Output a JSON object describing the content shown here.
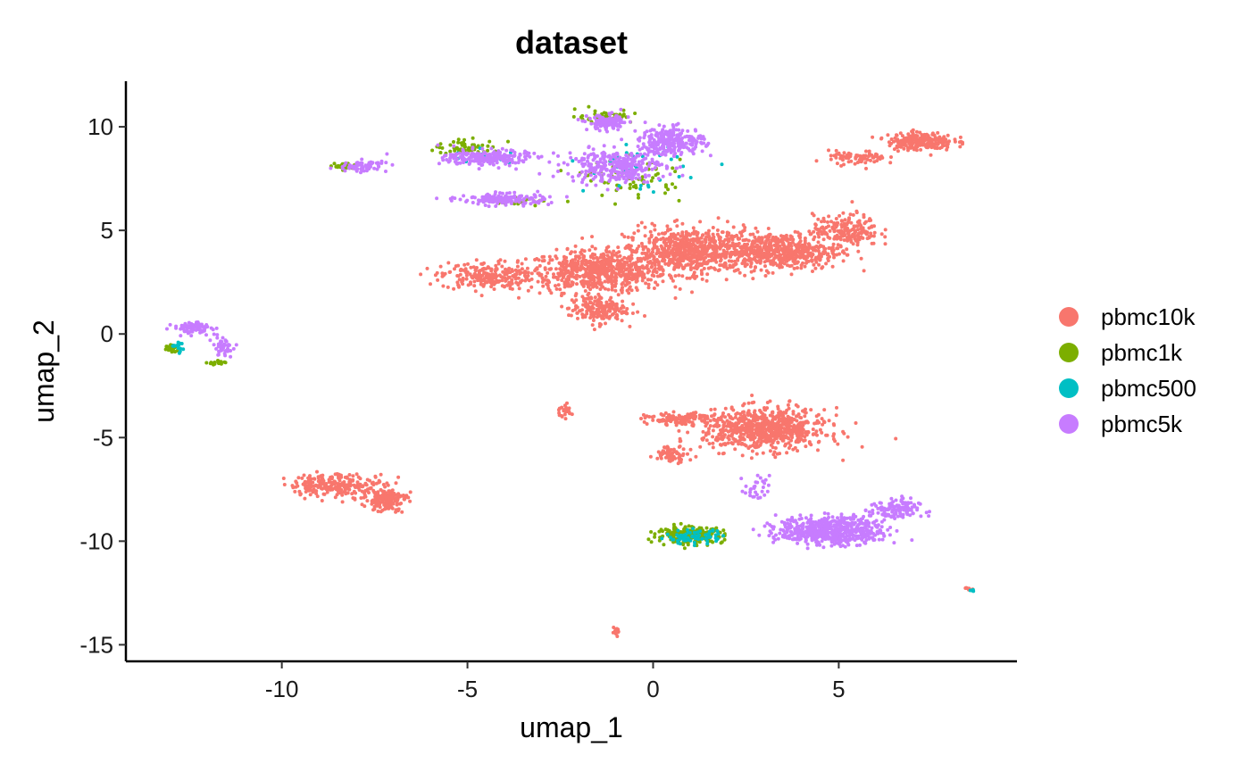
{
  "chart_data": {
    "type": "scatter",
    "title": "dataset",
    "xlabel": "umap_1",
    "ylabel": "umap_2",
    "xlim": [
      -14.2,
      9.8
    ],
    "ylim": [
      -15.8,
      12.2
    ],
    "xticks": [
      -10,
      -5,
      0,
      5
    ],
    "yticks": [
      10,
      5,
      0,
      -5,
      -10,
      -15
    ],
    "xtick_labels": [
      "-10",
      "-5",
      "0",
      "5"
    ],
    "ytick_labels": [
      "10",
      "5",
      "0",
      "-5",
      "-10",
      "-15"
    ],
    "grid": false,
    "legend_position": "right",
    "series": [
      {
        "name": "pbmc10k",
        "color": "#F8766D",
        "clusters": [
          {
            "center": [
              -1.5,
              3.0
            ],
            "spread": [
              1.7,
              0.9
            ],
            "n": 650
          },
          {
            "center": [
              -4.5,
              2.8
            ],
            "spread": [
              1.1,
              0.6
            ],
            "n": 220
          },
          {
            "center": [
              1.0,
              4.0
            ],
            "spread": [
              1.6,
              1.0
            ],
            "n": 700
          },
          {
            "center": [
              3.5,
              4.0
            ],
            "spread": [
              1.4,
              0.8
            ],
            "n": 500
          },
          {
            "center": [
              -1.5,
              1.2
            ],
            "spread": [
              0.7,
              0.6
            ],
            "n": 180
          },
          {
            "center": [
              5.2,
              5.0
            ],
            "spread": [
              0.8,
              0.7
            ],
            "n": 200
          },
          {
            "center": [
              7.2,
              9.3
            ],
            "spread": [
              0.8,
              0.4
            ],
            "n": 220
          },
          {
            "center": [
              5.5,
              8.5
            ],
            "spread": [
              0.7,
              0.3
            ],
            "n": 80
          },
          {
            "center": [
              3.0,
              -4.6
            ],
            "spread": [
              1.5,
              0.9
            ],
            "n": 750
          },
          {
            "center": [
              0.8,
              -4.1
            ],
            "spread": [
              0.9,
              0.25
            ],
            "n": 120
          },
          {
            "center": [
              0.5,
              -5.8
            ],
            "spread": [
              0.4,
              0.35
            ],
            "n": 70
          },
          {
            "center": [
              -8.5,
              -7.3
            ],
            "spread": [
              1.2,
              0.5
            ],
            "n": 240
          },
          {
            "center": [
              -7.2,
              -8.0
            ],
            "spread": [
              0.5,
              0.5
            ],
            "n": 150
          },
          {
            "center": [
              -2.4,
              -3.7
            ],
            "spread": [
              0.2,
              0.3
            ],
            "n": 25
          },
          {
            "center": [
              -1.0,
              -14.4
            ],
            "spread": [
              0.08,
              0.15
            ],
            "n": 18
          },
          {
            "center": [
              8.5,
              -12.3
            ],
            "spread": [
              0.15,
              0.08
            ],
            "n": 8
          }
        ]
      },
      {
        "name": "pbmc1k",
        "color": "#7CAE00",
        "clusters": [
          {
            "center": [
              1.0,
              -9.7
            ],
            "spread": [
              0.8,
              0.35
            ],
            "n": 250
          },
          {
            "center": [
              -1.3,
              10.5
            ],
            "spread": [
              0.7,
              0.3
            ],
            "n": 50
          },
          {
            "center": [
              -5.0,
              9.0
            ],
            "spread": [
              0.8,
              0.3
            ],
            "n": 60
          },
          {
            "center": [
              -8.3,
              8.1
            ],
            "spread": [
              0.25,
              0.15
            ],
            "n": 30
          },
          {
            "center": [
              -13.0,
              -0.7
            ],
            "spread": [
              0.15,
              0.2
            ],
            "n": 25
          },
          {
            "center": [
              -11.7,
              -1.4
            ],
            "spread": [
              0.25,
              0.1
            ],
            "n": 20
          },
          {
            "center": [
              -0.5,
              7.5
            ],
            "spread": [
              1.2,
              0.8
            ],
            "n": 60
          },
          {
            "center": [
              -3.5,
              6.4
            ],
            "spread": [
              0.8,
              0.2
            ],
            "n": 20
          }
        ]
      },
      {
        "name": "pbmc500",
        "color": "#00BFC4",
        "clusters": [
          {
            "center": [
              1.1,
              -9.8
            ],
            "spread": [
              0.7,
              0.3
            ],
            "n": 70
          },
          {
            "center": [
              -0.5,
              8.0
            ],
            "spread": [
              1.2,
              1.0
            ],
            "n": 40
          },
          {
            "center": [
              -4.5,
              8.5
            ],
            "spread": [
              1.0,
              0.3
            ],
            "n": 15
          },
          {
            "center": [
              -12.8,
              -0.6
            ],
            "spread": [
              0.2,
              0.3
            ],
            "n": 15
          },
          {
            "center": [
              8.6,
              -12.4
            ],
            "spread": [
              0.1,
              0.05
            ],
            "n": 4
          }
        ]
      },
      {
        "name": "pbmc5k",
        "color": "#C77CFF",
        "clusters": [
          {
            "center": [
              -1.2,
              10.2
            ],
            "spread": [
              0.5,
              0.35
            ],
            "n": 120
          },
          {
            "center": [
              0.5,
              9.3
            ],
            "spread": [
              0.8,
              0.6
            ],
            "n": 250
          },
          {
            "center": [
              -1.0,
              8.1
            ],
            "spread": [
              1.2,
              0.7
            ],
            "n": 320
          },
          {
            "center": [
              -4.5,
              8.5
            ],
            "spread": [
              1.0,
              0.35
            ],
            "n": 220
          },
          {
            "center": [
              -4.0,
              6.5
            ],
            "spread": [
              1.1,
              0.25
            ],
            "n": 160
          },
          {
            "center": [
              -7.8,
              8.1
            ],
            "spread": [
              0.6,
              0.25
            ],
            "n": 70
          },
          {
            "center": [
              -12.4,
              0.3
            ],
            "spread": [
              0.45,
              0.25
            ],
            "n": 90
          },
          {
            "center": [
              -11.6,
              -0.6
            ],
            "spread": [
              0.25,
              0.4
            ],
            "n": 45
          },
          {
            "center": [
              4.8,
              -9.5
            ],
            "spread": [
              1.3,
              0.6
            ],
            "n": 600
          },
          {
            "center": [
              6.5,
              -8.5
            ],
            "spread": [
              0.6,
              0.5
            ],
            "n": 120
          },
          {
            "center": [
              2.8,
              -7.5
            ],
            "spread": [
              0.3,
              0.6
            ],
            "n": 30
          }
        ]
      }
    ]
  }
}
